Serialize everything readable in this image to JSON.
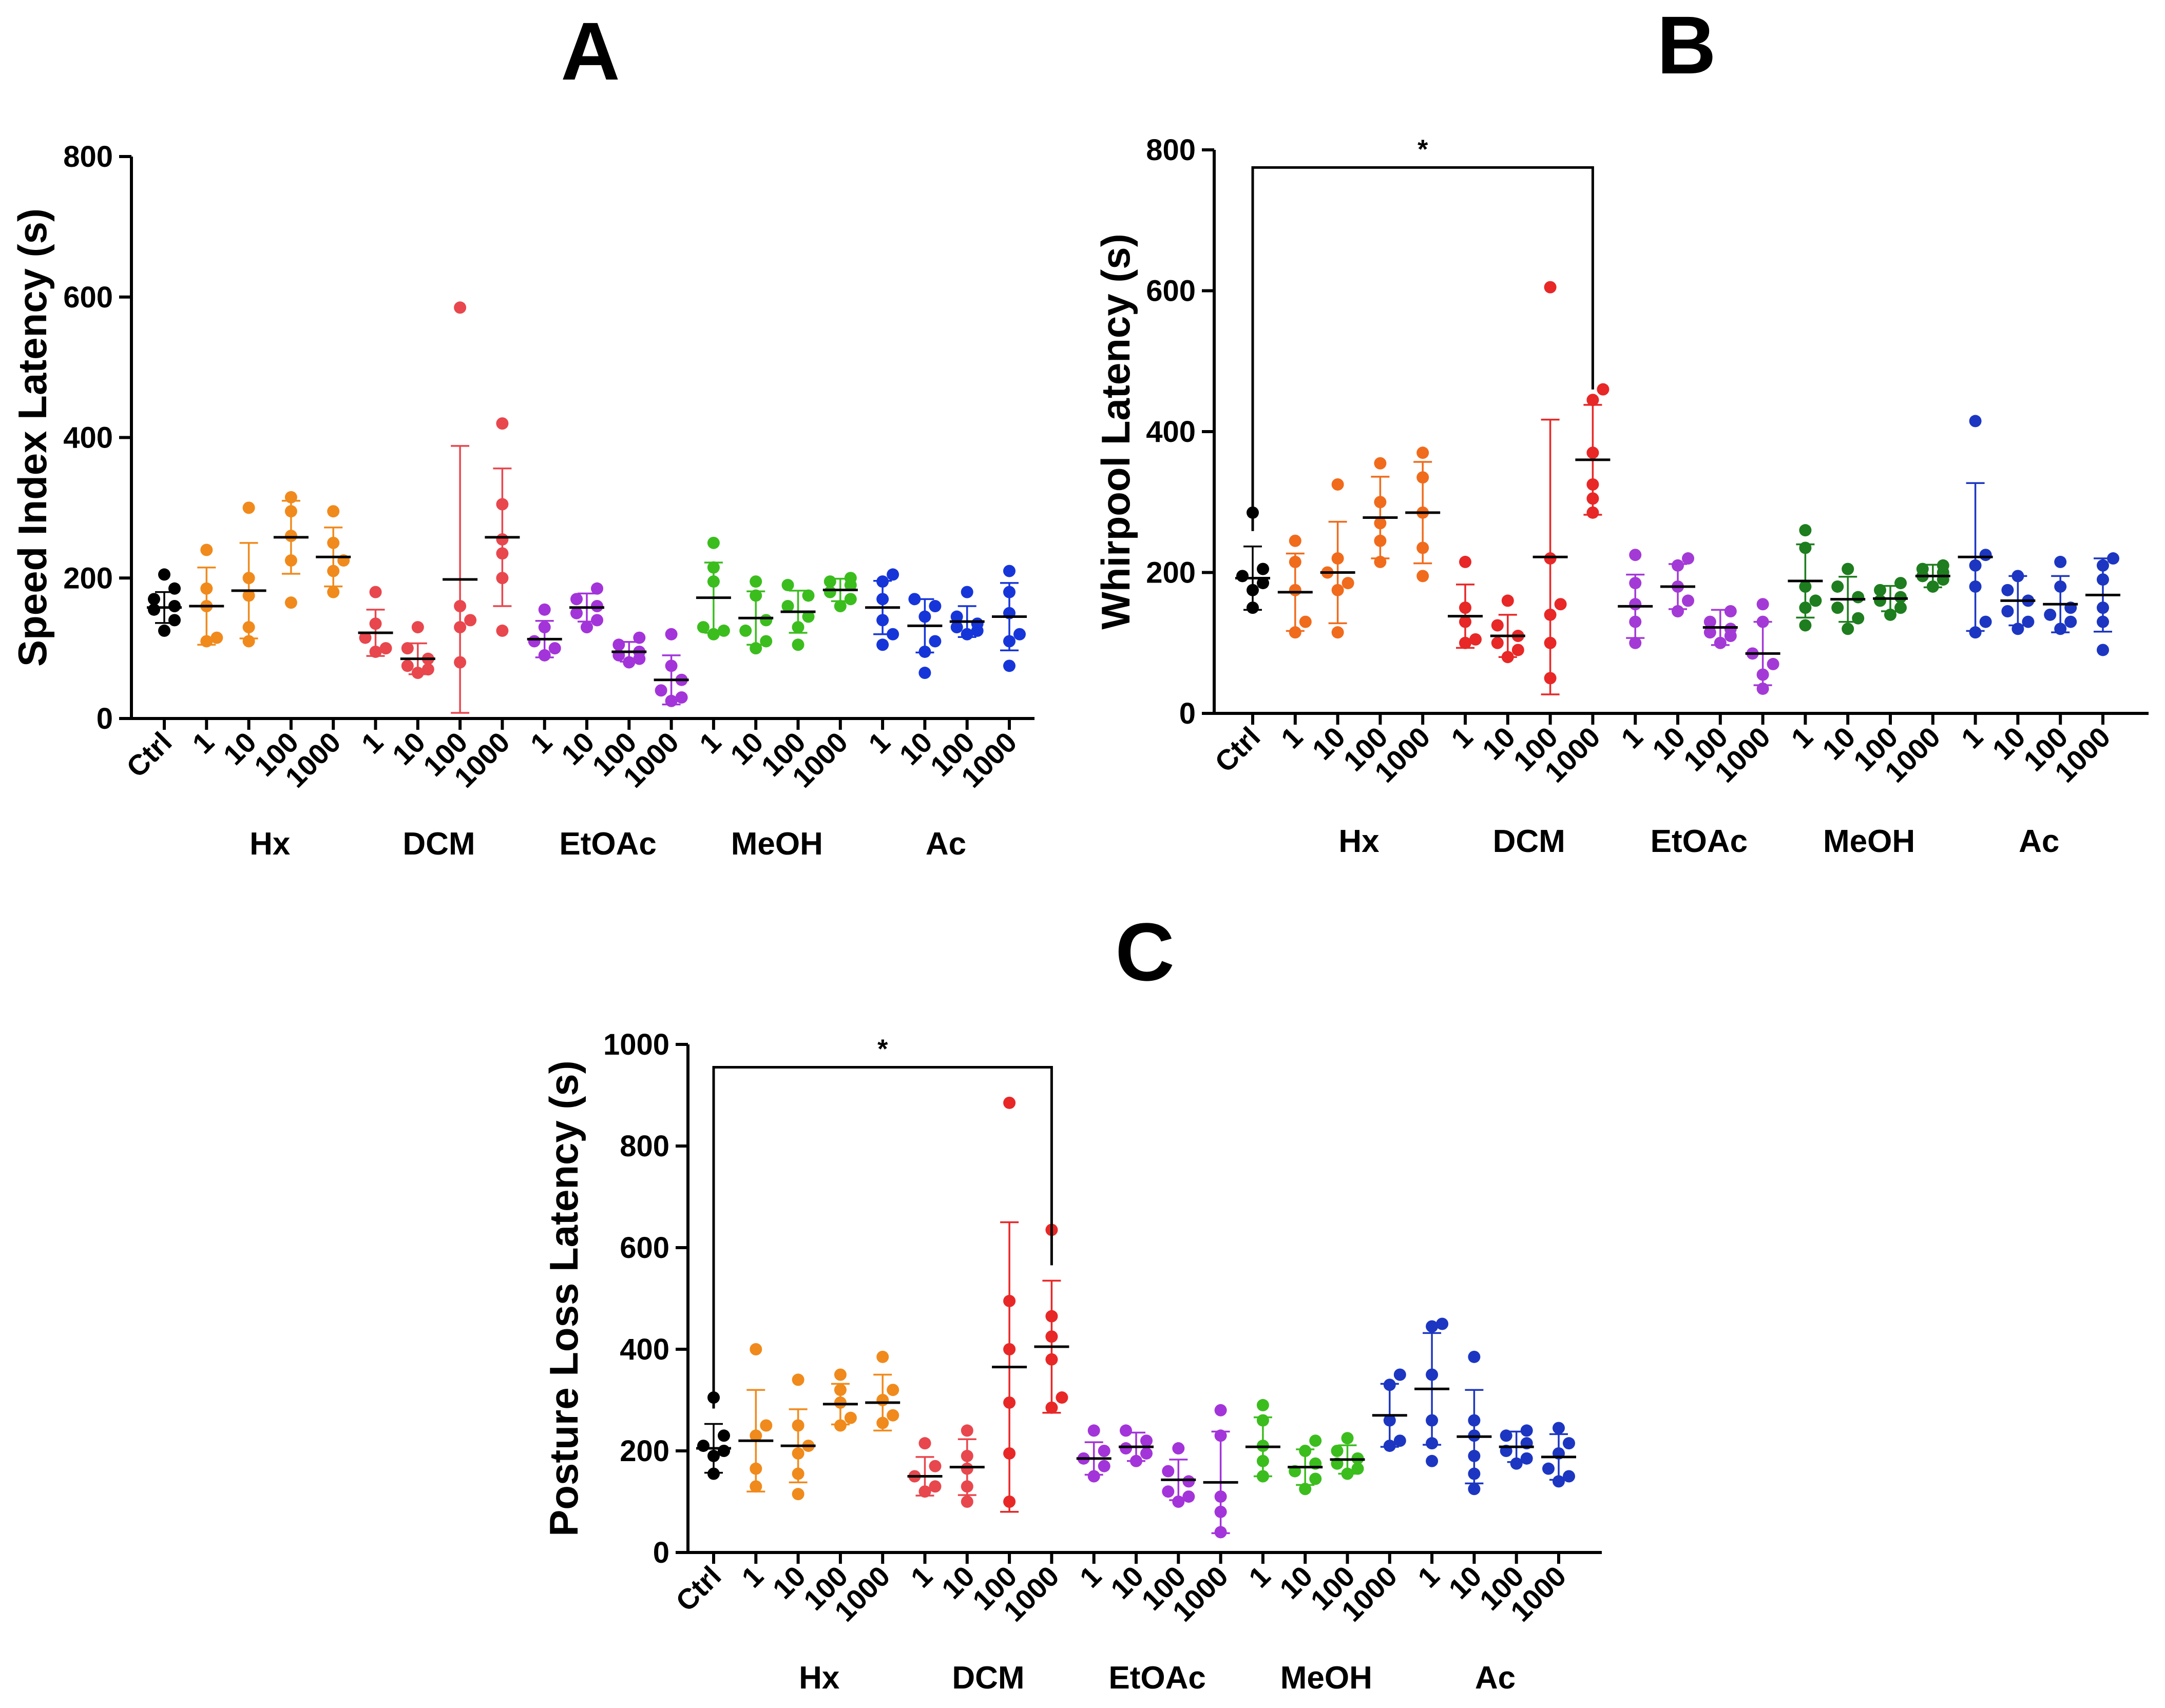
{
  "figure": {
    "panels": [
      "A",
      "B",
      "C"
    ]
  },
  "chart_data": [
    {
      "panel": "A",
      "type": "scatter",
      "ylabel": "Speed Index Latency (s)",
      "ylim": [
        0,
        800
      ],
      "yticks": [
        0,
        200,
        400,
        600,
        800
      ],
      "categories": [
        "Ctrl",
        "1",
        "10",
        "100",
        "1000",
        "1",
        "10",
        "100",
        "1000",
        "1",
        "10",
        "100",
        "1000",
        "1",
        "10",
        "100",
        "1000",
        "1",
        "10",
        "100",
        "1000"
      ],
      "groups": [
        {
          "name": "Hx",
          "span": [
            1,
            4
          ]
        },
        {
          "name": "DCM",
          "span": [
            5,
            8
          ]
        },
        {
          "name": "EtOAc",
          "span": [
            9,
            12
          ]
        },
        {
          "name": "MeOH",
          "span": [
            13,
            16
          ]
        },
        {
          "name": "Ac",
          "span": [
            17,
            20
          ]
        }
      ],
      "colors": [
        "#000000",
        "#f08a1c",
        "#f08a1c",
        "#f08a1c",
        "#f08a1c",
        "#e8474e",
        "#e8474e",
        "#e8474e",
        "#e8474e",
        "#a334d9",
        "#a334d9",
        "#a334d9",
        "#a334d9",
        "#3bbd1e",
        "#3bbd1e",
        "#3bbd1e",
        "#3bbd1e",
        "#1635d9",
        "#1635d9",
        "#1635d9",
        "#1635d9"
      ],
      "series": [
        {
          "points": [
            205,
            185,
            170,
            160,
            155,
            140,
            125
          ],
          "mean": 158,
          "sd": 22
        },
        {
          "points": [
            240,
            185,
            160,
            115,
            110
          ],
          "mean": 160,
          "sd": 55
        },
        {
          "points": [
            300,
            200,
            175,
            130,
            110
          ],
          "mean": 182,
          "sd": 68
        },
        {
          "points": [
            315,
            295,
            260,
            225,
            165
          ],
          "mean": 258,
          "sd": 52
        },
        {
          "points": [
            295,
            250,
            225,
            210,
            180
          ],
          "mean": 230,
          "sd": 42
        },
        {
          "points": [
            180,
            135,
            115,
            100,
            95
          ],
          "mean": 122,
          "sd": 33
        },
        {
          "points": [
            130,
            100,
            85,
            75,
            70,
            65
          ],
          "mean": 85,
          "sd": 22
        },
        {
          "points": [
            585,
            160,
            140,
            130,
            80
          ],
          "mean": 198,
          "sd": 190
        },
        {
          "points": [
            420,
            305,
            255,
            235,
            200,
            125
          ],
          "mean": 258,
          "sd": 98
        },
        {
          "points": [
            155,
            130,
            110,
            100,
            90
          ],
          "mean": 113,
          "sd": 26
        },
        {
          "points": [
            185,
            170,
            160,
            150,
            140,
            130
          ],
          "mean": 158,
          "sd": 20
        },
        {
          "points": [
            115,
            105,
            95,
            90,
            85,
            80
          ],
          "mean": 95,
          "sd": 14
        },
        {
          "points": [
            120,
            75,
            55,
            40,
            30,
            25
          ],
          "mean": 55,
          "sd": 35
        },
        {
          "points": [
            250,
            215,
            195,
            130,
            125,
            120
          ],
          "mean": 172,
          "sd": 50
        },
        {
          "points": [
            195,
            175,
            140,
            125,
            110,
            100
          ],
          "mean": 143,
          "sd": 38
        },
        {
          "points": [
            190,
            175,
            160,
            145,
            130,
            105
          ],
          "mean": 152,
          "sd": 30
        },
        {
          "points": [
            200,
            195,
            190,
            180,
            170,
            160
          ],
          "mean": 183,
          "sd": 16
        },
        {
          "points": [
            205,
            195,
            170,
            140,
            120,
            105
          ],
          "mean": 158,
          "sd": 38
        },
        {
          "points": [
            170,
            160,
            145,
            110,
            95,
            65
          ],
          "mean": 132,
          "sd": 38
        },
        {
          "points": [
            180,
            145,
            135,
            130,
            125,
            120
          ],
          "mean": 138,
          "sd": 22
        },
        {
          "points": [
            210,
            180,
            150,
            120,
            110,
            75
          ],
          "mean": 145,
          "sd": 48
        }
      ]
    },
    {
      "panel": "B",
      "type": "scatter",
      "ylabel": "Whirpool Latency (s)",
      "ylim": [
        0,
        800
      ],
      "yticks": [
        0,
        200,
        400,
        600,
        800
      ],
      "categories": [
        "Ctrl",
        "1",
        "10",
        "100",
        "1000",
        "1",
        "10",
        "100",
        "1000",
        "1",
        "10",
        "100",
        "1000",
        "1",
        "10",
        "100",
        "1000",
        "1",
        "10",
        "100",
        "1000"
      ],
      "groups": [
        {
          "name": "Hx",
          "span": [
            1,
            4
          ]
        },
        {
          "name": "DCM",
          "span": [
            5,
            8
          ]
        },
        {
          "name": "EtOAc",
          "span": [
            9,
            12
          ]
        },
        {
          "name": "MeOH",
          "span": [
            13,
            16
          ]
        },
        {
          "name": "Ac",
          "span": [
            17,
            20
          ]
        }
      ],
      "colors": [
        "#000000",
        "#f06b1c",
        "#f06b1c",
        "#f06b1c",
        "#f06b1c",
        "#e82727",
        "#e82727",
        "#e82727",
        "#e82727",
        "#a33ad6",
        "#a33ad6",
        "#a33ad6",
        "#a33ad6",
        "#1e7d1e",
        "#1e7d1e",
        "#1e7d1e",
        "#1e7d1e",
        "#1c36c2",
        "#1c36c2",
        "#1c36c2",
        "#1c36c2"
      ],
      "series": [
        {
          "points": [
            285,
            205,
            195,
            185,
            175,
            150
          ],
          "mean": 192,
          "sd": 45
        },
        {
          "points": [
            245,
            215,
            175,
            130,
            115
          ],
          "mean": 172,
          "sd": 55
        },
        {
          "points": [
            325,
            220,
            200,
            185,
            175,
            115
          ],
          "mean": 200,
          "sd": 72
        },
        {
          "points": [
            355,
            300,
            270,
            245,
            215
          ],
          "mean": 278,
          "sd": 58
        },
        {
          "points": [
            370,
            335,
            285,
            235,
            195
          ],
          "mean": 285,
          "sd": 72
        },
        {
          "points": [
            215,
            150,
            130,
            105,
            100
          ],
          "mean": 138,
          "sd": 45
        },
        {
          "points": [
            160,
            125,
            110,
            100,
            90,
            80
          ],
          "mean": 110,
          "sd": 30
        },
        {
          "points": [
            605,
            220,
            155,
            140,
            100,
            50
          ],
          "mean": 222,
          "sd": 195
        },
        {
          "points": [
            460,
            445,
            370,
            325,
            305,
            285
          ],
          "mean": 360,
          "sd": 78
        },
        {
          "points": [
            225,
            185,
            155,
            130,
            100
          ],
          "mean": 152,
          "sd": 45
        },
        {
          "points": [
            220,
            210,
            180,
            160,
            145
          ],
          "mean": 180,
          "sd": 32
        },
        {
          "points": [
            145,
            130,
            120,
            115,
            110,
            100
          ],
          "mean": 122,
          "sd": 25
        },
        {
          "points": [
            155,
            130,
            85,
            70,
            55,
            35
          ],
          "mean": 85,
          "sd": 45
        },
        {
          "points": [
            260,
            235,
            180,
            160,
            150,
            125
          ],
          "mean": 188,
          "sd": 52
        },
        {
          "points": [
            205,
            180,
            165,
            150,
            135,
            120
          ],
          "mean": 162,
          "sd": 32
        },
        {
          "points": [
            185,
            175,
            165,
            160,
            150,
            140
          ],
          "mean": 163,
          "sd": 18
        },
        {
          "points": [
            210,
            205,
            200,
            195,
            190,
            180
          ],
          "mean": 195,
          "sd": 16
        },
        {
          "points": [
            415,
            225,
            210,
            180,
            130,
            115
          ],
          "mean": 222,
          "sd": 105
        },
        {
          "points": [
            195,
            175,
            160,
            145,
            130,
            120
          ],
          "mean": 160,
          "sd": 35
        },
        {
          "points": [
            215,
            180,
            150,
            140,
            130,
            120
          ],
          "mean": 155,
          "sd": 40
        },
        {
          "points": [
            220,
            210,
            190,
            150,
            130,
            90
          ],
          "mean": 168,
          "sd": 52
        }
      ],
      "significance": {
        "from": 0,
        "to": 8,
        "y": 775,
        "label": "*"
      }
    },
    {
      "panel": "C",
      "type": "scatter",
      "ylabel": "Posture Loss Latency (s)",
      "ylim": [
        0,
        1000
      ],
      "yticks": [
        0,
        200,
        400,
        600,
        800,
        1000
      ],
      "categories": [
        "Ctrl",
        "1",
        "10",
        "100",
        "1000",
        "1",
        "10",
        "100",
        "1000",
        "1",
        "10",
        "100",
        "1000",
        "1",
        "10",
        "100",
        "1000",
        "1",
        "10",
        "100",
        "1000"
      ],
      "groups": [
        {
          "name": "Hx",
          "span": [
            1,
            4
          ]
        },
        {
          "name": "DCM",
          "span": [
            5,
            8
          ]
        },
        {
          "name": "EtOAc",
          "span": [
            9,
            12
          ]
        },
        {
          "name": "MeOH",
          "span": [
            13,
            16
          ]
        },
        {
          "name": "Ac",
          "span": [
            17,
            20
          ]
        }
      ],
      "colors": [
        "#000000",
        "#f08a1c",
        "#f08a1c",
        "#f08a1c",
        "#f08a1c",
        "#e8474e",
        "#e8474e",
        "#e82727",
        "#e82727",
        "#a334d9",
        "#a334d9",
        "#a334d9",
        "#a334d9",
        "#3bbd1e",
        "#3bbd1e",
        "#3bbd1e",
        "#1c36c2",
        "#1c36c2",
        "#1c36c2",
        "#1c36c2",
        "#1c36c2"
      ],
      "series": [
        {
          "points": [
            305,
            230,
            210,
            200,
            190,
            155
          ],
          "mean": 205,
          "sd": 48
        },
        {
          "points": [
            400,
            250,
            230,
            165,
            130
          ],
          "mean": 220,
          "sd": 100
        },
        {
          "points": [
            340,
            250,
            210,
            195,
            155,
            115
          ],
          "mean": 210,
          "sd": 72
        },
        {
          "points": [
            350,
            320,
            295,
            265,
            250
          ],
          "mean": 292,
          "sd": 40
        },
        {
          "points": [
            385,
            320,
            300,
            270,
            255
          ],
          "mean": 295,
          "sd": 55
        },
        {
          "points": [
            215,
            170,
            150,
            130,
            120
          ],
          "mean": 150,
          "sd": 38
        },
        {
          "points": [
            240,
            190,
            165,
            130,
            100
          ],
          "mean": 168,
          "sd": 55
        },
        {
          "points": [
            885,
            495,
            400,
            295,
            195,
            100
          ],
          "mean": 365,
          "sd": 285
        },
        {
          "points": [
            635,
            465,
            425,
            380,
            305,
            285
          ],
          "mean": 405,
          "sd": 130
        },
        {
          "points": [
            240,
            200,
            185,
            170,
            150
          ],
          "mean": 185,
          "sd": 32
        },
        {
          "points": [
            240,
            220,
            205,
            195,
            180
          ],
          "mean": 208,
          "sd": 28
        },
        {
          "points": [
            205,
            160,
            140,
            120,
            110,
            100
          ],
          "mean": 143,
          "sd": 40
        },
        {
          "points": [
            280,
            230,
            110,
            80,
            40
          ],
          "mean": 138,
          "sd": 100
        },
        {
          "points": [
            290,
            260,
            210,
            180,
            150
          ],
          "mean": 208,
          "sd": 58
        },
        {
          "points": [
            220,
            200,
            175,
            160,
            145,
            125
          ],
          "mean": 168,
          "sd": 35
        },
        {
          "points": [
            225,
            200,
            185,
            175,
            165,
            155
          ],
          "mean": 183,
          "sd": 28
        },
        {
          "points": [
            350,
            330,
            260,
            220,
            210
          ],
          "mean": 270,
          "sd": 62
        },
        {
          "points": [
            450,
            445,
            350,
            260,
            215,
            180
          ],
          "mean": 322,
          "sd": 110
        },
        {
          "points": [
            385,
            260,
            230,
            190,
            155,
            125
          ],
          "mean": 228,
          "sd": 92
        },
        {
          "points": [
            240,
            230,
            215,
            200,
            185,
            175
          ],
          "mean": 208,
          "sd": 30
        },
        {
          "points": [
            245,
            215,
            195,
            165,
            150,
            140
          ],
          "mean": 188,
          "sd": 45
        }
      ],
      "significance": {
        "from": 0,
        "to": 8,
        "y": 955,
        "label": "*"
      }
    }
  ]
}
